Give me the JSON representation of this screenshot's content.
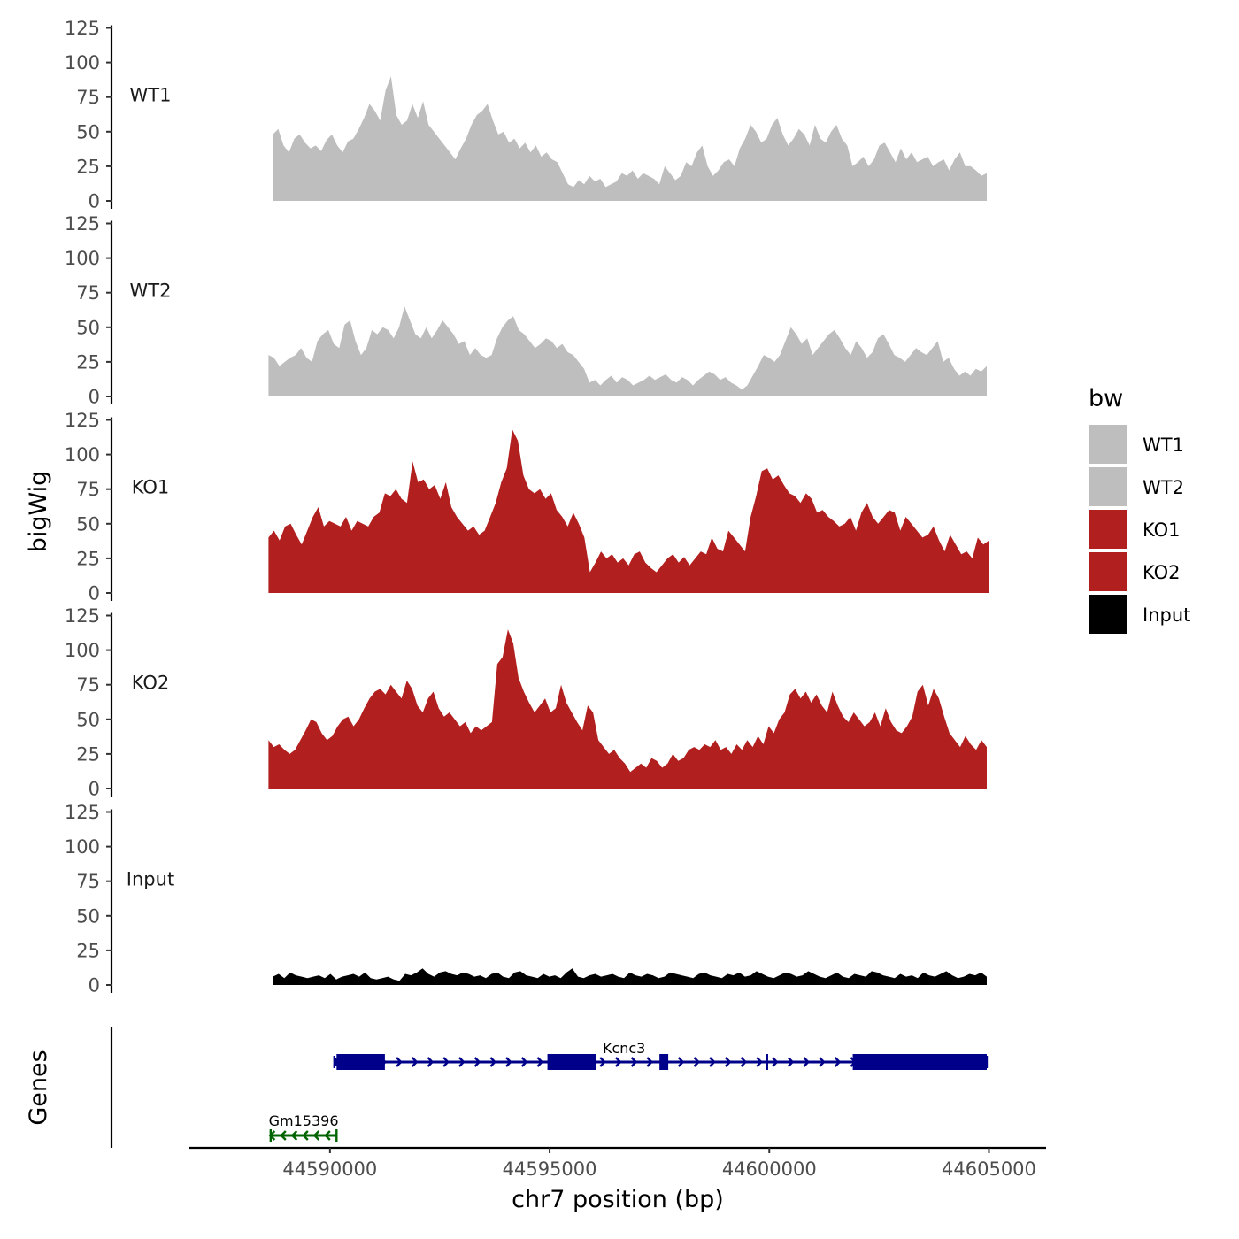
{
  "chart_data": {
    "type": "area",
    "chromosome": "chr7",
    "xlabel": "chr7 position (bp)",
    "ylabel": "bigWig",
    "genes_label": "Genes",
    "xlim": [
      44586800,
      44606300
    ],
    "x_ticks": [
      44590000,
      44595000,
      44600000,
      44605000
    ],
    "x_tick_labels": [
      "44590000",
      "44595000",
      "44600000",
      "44605000"
    ],
    "ylim": [
      0,
      125
    ],
    "y_ticks": [
      0,
      25,
      50,
      75,
      100,
      125
    ],
    "y_tick_labels": [
      "0",
      "25",
      "50",
      "75",
      "100",
      "125"
    ],
    "legend": {
      "title": "bw",
      "entries": [
        {
          "label": "WT1",
          "color": "#bebebe"
        },
        {
          "label": "WT2",
          "color": "#bebebe"
        },
        {
          "label": "KO1",
          "color": "#b21f1f"
        },
        {
          "label": "KO2",
          "color": "#b21f1f"
        },
        {
          "label": "Input",
          "color": "#000000"
        }
      ]
    },
    "tracks": [
      {
        "name": "WT1",
        "color": "#bebebe",
        "start": 44588700,
        "end": 44604950,
        "values": [
          48,
          52,
          40,
          35,
          45,
          48,
          42,
          38,
          40,
          36,
          44,
          48,
          40,
          35,
          43,
          45,
          52,
          60,
          70,
          65,
          58,
          80,
          90,
          62,
          55,
          58,
          70,
          60,
          72,
          55,
          50,
          45,
          40,
          35,
          30,
          38,
          45,
          55,
          62,
          65,
          70,
          58,
          48,
          50,
          42,
          45,
          38,
          42,
          35,
          40,
          32,
          35,
          30,
          28,
          20,
          12,
          10,
          15,
          12,
          18,
          14,
          16,
          10,
          12,
          14,
          20,
          18,
          22,
          16,
          20,
          18,
          16,
          12,
          25,
          20,
          15,
          18,
          28,
          25,
          35,
          40,
          25,
          18,
          22,
          28,
          30,
          25,
          38,
          45,
          55,
          50,
          42,
          45,
          55,
          60,
          48,
          40,
          45,
          52,
          48,
          40,
          55,
          45,
          42,
          50,
          55,
          45,
          40,
          25,
          28,
          32,
          25,
          30,
          40,
          42,
          35,
          28,
          38,
          30,
          35,
          28,
          30,
          32,
          25,
          28,
          30,
          22,
          30,
          35,
          25,
          25,
          22,
          18,
          20
        ]
      },
      {
        "name": "WT2",
        "color": "#bebebe",
        "start": 44588600,
        "end": 44604950,
        "values": [
          30,
          28,
          22,
          25,
          28,
          30,
          35,
          28,
          25,
          40,
          45,
          48,
          38,
          35,
          52,
          55,
          40,
          30,
          35,
          48,
          45,
          50,
          48,
          42,
          50,
          65,
          55,
          45,
          42,
          50,
          42,
          48,
          55,
          50,
          45,
          38,
          40,
          30,
          35,
          30,
          28,
          30,
          42,
          50,
          55,
          58,
          48,
          45,
          40,
          35,
          38,
          42,
          40,
          35,
          38,
          32,
          30,
          25,
          20,
          10,
          12,
          8,
          12,
          15,
          10,
          14,
          12,
          8,
          10,
          12,
          15,
          12,
          14,
          16,
          12,
          10,
          14,
          12,
          8,
          12,
          15,
          18,
          16,
          12,
          14,
          10,
          8,
          5,
          8,
          15,
          22,
          30,
          28,
          25,
          30,
          40,
          50,
          45,
          38,
          42,
          30,
          35,
          40,
          45,
          48,
          42,
          35,
          30,
          40,
          35,
          28,
          32,
          42,
          45,
          38,
          30,
          28,
          25,
          30,
          35,
          32,
          30,
          35,
          40,
          25,
          28,
          20,
          15,
          18,
          15,
          20,
          18,
          22
        ]
      },
      {
        "name": "KO1",
        "color": "#b21f1f",
        "start": 44588600,
        "end": 44605000,
        "values": [
          40,
          45,
          38,
          48,
          50,
          42,
          35,
          45,
          55,
          62,
          48,
          52,
          50,
          48,
          55,
          45,
          52,
          50,
          48,
          55,
          58,
          72,
          70,
          75,
          68,
          65,
          95,
          80,
          82,
          75,
          78,
          68,
          80,
          62,
          55,
          50,
          45,
          48,
          42,
          45,
          55,
          65,
          80,
          90,
          118,
          110,
          85,
          75,
          72,
          75,
          68,
          72,
          60,
          55,
          48,
          58,
          50,
          40,
          15,
          22,
          30,
          25,
          28,
          22,
          25,
          20,
          28,
          30,
          22,
          18,
          15,
          20,
          25,
          28,
          22,
          26,
          20,
          25,
          30,
          28,
          40,
          32,
          30,
          45,
          40,
          35,
          30,
          55,
          70,
          88,
          90,
          82,
          85,
          78,
          72,
          70,
          65,
          72,
          68,
          58,
          60,
          55,
          52,
          48,
          50,
          55,
          45,
          58,
          65,
          55,
          50,
          55,
          60,
          58,
          45,
          55,
          50,
          45,
          40,
          42,
          48,
          38,
          30,
          42,
          35,
          28,
          30,
          25,
          40,
          35,
          38
        ]
      },
      {
        "name": "KO2",
        "color": "#b21f1f",
        "start": 44588600,
        "end": 44604950,
        "values": [
          35,
          30,
          32,
          28,
          25,
          28,
          35,
          42,
          50,
          48,
          40,
          35,
          38,
          45,
          50,
          52,
          45,
          50,
          58,
          65,
          70,
          72,
          68,
          75,
          70,
          65,
          78,
          72,
          60,
          55,
          65,
          70,
          58,
          52,
          55,
          50,
          45,
          48,
          40,
          45,
          42,
          45,
          48,
          90,
          95,
          115,
          105,
          80,
          70,
          62,
          55,
          60,
          65,
          55,
          58,
          75,
          62,
          55,
          48,
          42,
          60,
          55,
          35,
          30,
          25,
          28,
          22,
          18,
          12,
          15,
          18,
          15,
          22,
          20,
          15,
          18,
          25,
          20,
          22,
          28,
          30,
          28,
          32,
          30,
          35,
          28,
          30,
          25,
          32,
          28,
          35,
          30,
          38,
          32,
          45,
          40,
          50,
          55,
          68,
          72,
          65,
          70,
          62,
          68,
          60,
          55,
          70,
          60,
          52,
          48,
          55,
          50,
          45,
          48,
          55,
          45,
          58,
          48,
          42,
          40,
          45,
          52,
          70,
          75,
          60,
          72,
          65,
          52,
          40,
          35,
          30,
          38,
          32,
          28,
          35,
          30
        ]
      },
      {
        "name": "Input",
        "color": "#000000",
        "start": 44588700,
        "end": 44604950,
        "values": [
          6,
          8,
          5,
          9,
          7,
          6,
          5,
          6,
          7,
          5,
          8,
          4,
          6,
          7,
          8,
          6,
          9,
          5,
          4,
          5,
          6,
          4,
          3,
          8,
          7,
          9,
          12,
          8,
          6,
          9,
          10,
          8,
          7,
          9,
          8,
          6,
          7,
          5,
          8,
          9,
          6,
          5,
          9,
          10,
          7,
          6,
          5,
          8,
          6,
          7,
          5,
          9,
          12,
          6,
          5,
          7,
          8,
          6,
          7,
          8,
          6,
          5,
          9,
          7,
          6,
          8,
          7,
          5,
          6,
          9,
          8,
          7,
          6,
          5,
          8,
          9,
          7,
          6,
          5,
          8,
          7,
          9,
          6,
          7,
          10,
          8,
          6,
          5,
          7,
          9,
          8,
          6,
          7,
          10,
          8,
          6,
          5,
          7,
          9,
          6,
          5,
          8,
          7,
          6,
          10,
          9,
          7,
          6,
          5,
          8,
          6,
          7,
          5,
          9,
          7,
          6,
          8,
          10,
          7,
          5,
          6,
          8,
          7,
          9,
          6
        ]
      }
    ],
    "genes": [
      {
        "name": "Kcnc3",
        "strand": "+",
        "color": "#00008b",
        "start": 44590100,
        "end": 44604950,
        "exons": [
          [
            44590150,
            44591250
          ],
          [
            44594950,
            44596050
          ],
          [
            44597500,
            44597700
          ],
          [
            44601900,
            44604950
          ]
        ],
        "tick_positions": [
          44599950
        ]
      },
      {
        "name": "Gm15396",
        "strand": "-",
        "color": "#006400",
        "start": 44588650,
        "end": 44590150
      }
    ]
  }
}
